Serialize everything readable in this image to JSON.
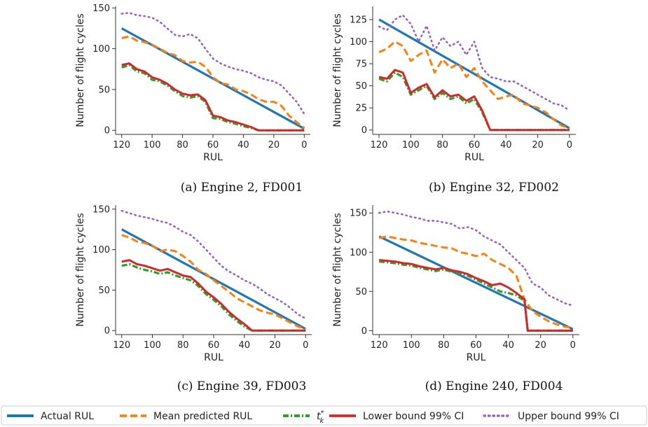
{
  "colors": {
    "actual": "#1f77b4",
    "mean": "#ff7f0e",
    "tk": "#2ca02c",
    "lower": "#d62728",
    "upper": "#9467bd"
  },
  "legend": {
    "entries": [
      {
        "key": "actual",
        "label": "Actual RUL"
      },
      {
        "key": "mean",
        "label": "Mean predicted RUL"
      },
      {
        "key": "tk",
        "label": "t",
        "label_sup": "*",
        "label_sub": "k"
      },
      {
        "key": "lower",
        "label": "Lower bound 99% CI"
      },
      {
        "key": "upper",
        "label": "Upper bound 99% CI"
      }
    ]
  },
  "chart_data": [
    {
      "type": "line",
      "caption": "(a) Engine 2, FD001",
      "xlabel": "RUL",
      "ylabel": "Number of flight cycles",
      "xlim": [
        124,
        -4
      ],
      "ylim": [
        -5,
        152
      ],
      "xticks": [
        120,
        100,
        80,
        60,
        40,
        20,
        0
      ],
      "xtick_labels": [
        "120",
        "100",
        "80",
        "60",
        "40",
        "20",
        "0"
      ],
      "yticks": [
        0,
        50,
        100,
        150
      ],
      "ytick_labels": [
        "0",
        "50",
        "100",
        "150"
      ],
      "series": [
        {
          "key": "actual",
          "x": [
            120,
            0
          ],
          "y": [
            125,
            2
          ]
        },
        {
          "key": "mean",
          "x": [
            120,
            115,
            110,
            105,
            100,
            95,
            90,
            85,
            80,
            75,
            70,
            65,
            60,
            55,
            50,
            45,
            40,
            35,
            30,
            25,
            20,
            15,
            10,
            5,
            0
          ],
          "y": [
            113,
            115,
            110,
            108,
            105,
            100,
            95,
            92,
            85,
            83,
            84,
            78,
            65,
            58,
            56,
            50,
            48,
            44,
            38,
            35,
            35,
            30,
            18,
            10,
            3
          ]
        },
        {
          "key": "tk",
          "x": [
            120,
            115,
            110,
            105,
            100,
            95,
            90,
            85,
            80,
            75,
            70,
            65,
            60,
            55,
            50,
            45,
            40,
            35,
            30,
            25,
            20,
            15,
            10,
            5,
            0
          ],
          "y": [
            77,
            80,
            72,
            70,
            62,
            60,
            55,
            48,
            42,
            40,
            42,
            35,
            15,
            14,
            10,
            8,
            5,
            3,
            0,
            0,
            0,
            0,
            0,
            0,
            0
          ]
        },
        {
          "key": "lower",
          "x": [
            120,
            115,
            110,
            105,
            100,
            95,
            90,
            85,
            80,
            75,
            70,
            65,
            60,
            55,
            50,
            45,
            40,
            35,
            30,
            25,
            20,
            15,
            10,
            5,
            0
          ],
          "y": [
            80,
            82,
            75,
            72,
            65,
            62,
            57,
            50,
            45,
            43,
            44,
            37,
            18,
            16,
            12,
            10,
            7,
            4,
            0,
            0,
            0,
            0,
            0,
            0,
            0
          ]
        },
        {
          "key": "upper",
          "x": [
            120,
            115,
            110,
            105,
            100,
            95,
            90,
            85,
            80,
            75,
            70,
            65,
            60,
            55,
            50,
            45,
            40,
            35,
            30,
            25,
            20,
            15,
            10,
            5,
            0
          ],
          "y": [
            143,
            144,
            141,
            140,
            138,
            133,
            125,
            117,
            115,
            118,
            113,
            100,
            88,
            82,
            78,
            75,
            73,
            70,
            65,
            62,
            60,
            55,
            45,
            35,
            20
          ]
        }
      ]
    },
    {
      "type": "line",
      "caption": "(b) Engine 32, FD002",
      "xlabel": "RUL",
      "ylabel": "Number of flight cycles",
      "xlim": [
        124,
        -4
      ],
      "ylim": [
        -5,
        140
      ],
      "xticks": [
        120,
        100,
        80,
        60,
        40,
        20,
        0
      ],
      "xtick_labels": [
        "120",
        "100",
        "80",
        "60",
        "40",
        "20",
        "0"
      ],
      "yticks": [
        0,
        25,
        50,
        75,
        100,
        125
      ],
      "ytick_labels": [
        "0",
        "25",
        "50",
        "75",
        "100",
        "125"
      ],
      "series": [
        {
          "key": "actual",
          "x": [
            120,
            0
          ],
          "y": [
            125,
            2
          ]
        },
        {
          "key": "mean",
          "x": [
            120,
            115,
            110,
            105,
            100,
            95,
            90,
            85,
            80,
            75,
            70,
            65,
            60,
            55,
            50,
            45,
            40,
            35,
            30,
            25,
            20,
            15,
            10,
            5,
            0
          ],
          "y": [
            88,
            92,
            100,
            95,
            78,
            85,
            90,
            65,
            80,
            70,
            75,
            60,
            70,
            55,
            45,
            35,
            38,
            40,
            30,
            28,
            25,
            20,
            12,
            5,
            2
          ]
        },
        {
          "key": "tk",
          "x": [
            120,
            115,
            110,
            105,
            100,
            95,
            90,
            85,
            80,
            75,
            70,
            65,
            60,
            55,
            50,
            45,
            40,
            35,
            30,
            25,
            20,
            15,
            10,
            5,
            0
          ],
          "y": [
            58,
            55,
            65,
            60,
            40,
            45,
            50,
            35,
            42,
            35,
            38,
            30,
            35,
            20,
            0,
            0,
            0,
            0,
            0,
            0,
            0,
            0,
            0,
            0,
            0
          ]
        },
        {
          "key": "lower",
          "x": [
            120,
            115,
            110,
            105,
            100,
            95,
            90,
            85,
            80,
            75,
            70,
            65,
            60,
            55,
            50,
            45,
            40,
            35,
            30,
            25,
            20,
            15,
            10,
            5,
            0
          ],
          "y": [
            60,
            58,
            68,
            65,
            42,
            48,
            52,
            37,
            45,
            38,
            40,
            33,
            38,
            22,
            0,
            0,
            0,
            0,
            0,
            0,
            0,
            0,
            0,
            0,
            0
          ]
        },
        {
          "key": "upper",
          "x": [
            120,
            115,
            110,
            105,
            100,
            95,
            90,
            85,
            80,
            75,
            70,
            65,
            60,
            55,
            50,
            45,
            40,
            35,
            30,
            25,
            20,
            15,
            10,
            5,
            0
          ],
          "y": [
            117,
            113,
            125,
            130,
            120,
            100,
            118,
            90,
            105,
            95,
            100,
            85,
            100,
            70,
            60,
            58,
            55,
            55,
            50,
            45,
            40,
            35,
            30,
            28,
            22
          ]
        }
      ]
    },
    {
      "type": "line",
      "caption": "(c) Engine 39, FD003",
      "xlabel": "RUL",
      "ylabel": "Number of flight cycles",
      "xlim": [
        124,
        -4
      ],
      "ylim": [
        -5,
        155
      ],
      "xticks": [
        120,
        100,
        80,
        60,
        40,
        20,
        0
      ],
      "xtick_labels": [
        "120",
        "100",
        "80",
        "60",
        "40",
        "20",
        "0"
      ],
      "yticks": [
        0,
        50,
        100,
        150
      ],
      "ytick_labels": [
        "0",
        "50",
        "100",
        "150"
      ],
      "series": [
        {
          "key": "actual",
          "x": [
            120,
            0
          ],
          "y": [
            125,
            2
          ]
        },
        {
          "key": "mean",
          "x": [
            120,
            115,
            110,
            105,
            100,
            95,
            90,
            85,
            80,
            75,
            70,
            65,
            60,
            55,
            50,
            45,
            40,
            35,
            30,
            25,
            20,
            15,
            10,
            5,
            0
          ],
          "y": [
            118,
            115,
            110,
            108,
            105,
            98,
            100,
            98,
            92,
            85,
            75,
            70,
            62,
            55,
            48,
            40,
            35,
            30,
            25,
            22,
            20,
            15,
            10,
            5,
            2
          ]
        },
        {
          "key": "tk",
          "x": [
            120,
            115,
            110,
            105,
            100,
            95,
            90,
            85,
            80,
            75,
            70,
            65,
            60,
            55,
            50,
            45,
            40,
            35,
            30,
            25,
            20,
            15,
            10,
            5,
            0
          ],
          "y": [
            80,
            82,
            78,
            75,
            73,
            70,
            72,
            68,
            65,
            62,
            55,
            45,
            38,
            30,
            20,
            12,
            5,
            0,
            0,
            0,
            0,
            0,
            0,
            0,
            0
          ]
        },
        {
          "key": "lower",
          "x": [
            120,
            115,
            110,
            105,
            100,
            95,
            90,
            85,
            80,
            75,
            70,
            65,
            60,
            55,
            50,
            45,
            40,
            35,
            30,
            25,
            20,
            15,
            10,
            5,
            0
          ],
          "y": [
            85,
            87,
            82,
            80,
            77,
            74,
            76,
            72,
            68,
            66,
            58,
            48,
            41,
            33,
            23,
            15,
            8,
            0,
            0,
            0,
            0,
            0,
            0,
            0,
            0
          ]
        },
        {
          "key": "upper",
          "x": [
            120,
            115,
            110,
            105,
            100,
            95,
            90,
            85,
            80,
            75,
            70,
            65,
            60,
            55,
            50,
            45,
            40,
            35,
            30,
            25,
            20,
            15,
            10,
            5,
            0
          ],
          "y": [
            148,
            145,
            142,
            140,
            138,
            135,
            133,
            128,
            122,
            118,
            110,
            100,
            90,
            80,
            73,
            68,
            62,
            58,
            52,
            45,
            40,
            35,
            28,
            20,
            15
          ]
        }
      ]
    },
    {
      "type": "line",
      "caption": "(d) Engine 240, FD004",
      "xlabel": "RUL",
      "ylabel": "Number of flight cycles",
      "xlim": [
        124,
        -4
      ],
      "ylim": [
        -5,
        160
      ],
      "xticks": [
        120,
        100,
        80,
        60,
        40,
        20,
        0
      ],
      "xtick_labels": [
        "120",
        "100",
        "80",
        "60",
        "40",
        "20",
        "0"
      ],
      "yticks": [
        0,
        50,
        100,
        150
      ],
      "ytick_labels": [
        "0",
        "50",
        "100",
        "150"
      ],
      "series": [
        {
          "key": "actual",
          "x": [
            120,
            0
          ],
          "y": [
            120,
            2
          ]
        },
        {
          "key": "mean",
          "x": [
            120,
            115,
            110,
            105,
            100,
            95,
            90,
            85,
            80,
            75,
            70,
            65,
            60,
            55,
            50,
            45,
            40,
            35,
            30,
            25,
            20,
            15,
            10,
            5,
            0
          ],
          "y": [
            118,
            120,
            118,
            116,
            115,
            112,
            110,
            108,
            106,
            105,
            100,
            98,
            95,
            98,
            90,
            85,
            80,
            70,
            40,
            25,
            18,
            12,
            8,
            5,
            4
          ]
        },
        {
          "key": "tk",
          "x": [
            120,
            115,
            110,
            105,
            100,
            95,
            90,
            85,
            80,
            75,
            70,
            65,
            60,
            55,
            50,
            45,
            40,
            35,
            30,
            28,
            25,
            20,
            15,
            10,
            5,
            0
          ],
          "y": [
            88,
            87,
            86,
            84,
            83,
            80,
            78,
            76,
            78,
            75,
            73,
            70,
            65,
            60,
            55,
            50,
            48,
            45,
            38,
            0,
            0,
            0,
            0,
            0,
            0,
            0
          ]
        },
        {
          "key": "lower",
          "x": [
            120,
            115,
            110,
            105,
            100,
            95,
            90,
            85,
            80,
            75,
            70,
            65,
            60,
            55,
            50,
            45,
            40,
            35,
            30,
            28,
            25,
            20,
            15,
            10,
            5,
            0
          ],
          "y": [
            90,
            89,
            88,
            86,
            85,
            82,
            80,
            78,
            80,
            77,
            75,
            72,
            67,
            63,
            58,
            60,
            55,
            48,
            40,
            0,
            0,
            0,
            0,
            0,
            0,
            0
          ]
        },
        {
          "key": "upper",
          "x": [
            120,
            115,
            110,
            105,
            100,
            95,
            90,
            85,
            80,
            75,
            70,
            65,
            60,
            55,
            50,
            45,
            40,
            35,
            30,
            25,
            20,
            15,
            10,
            5,
            0
          ],
          "y": [
            150,
            152,
            150,
            148,
            145,
            143,
            140,
            140,
            138,
            136,
            130,
            132,
            128,
            120,
            115,
            110,
            100,
            90,
            80,
            60,
            55,
            45,
            40,
            35,
            32
          ]
        }
      ]
    }
  ]
}
